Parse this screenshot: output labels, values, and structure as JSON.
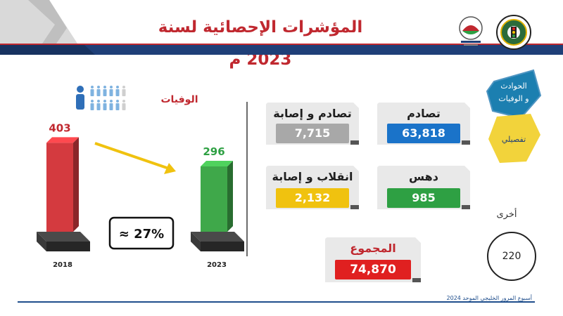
{
  "header": {
    "title": "المؤشرات الإحصائية لسنة 2023 م"
  },
  "chart_data": {
    "type": "bar",
    "title": "الوفيات",
    "categories": [
      "2018",
      "2023"
    ],
    "values": [
      403,
      296
    ],
    "colors": [
      "#d43a3f",
      "#3fa84a"
    ],
    "change_label": "≈ 27%",
    "ylim": [
      0,
      420
    ]
  },
  "cards": [
    {
      "label": "تصادم",
      "value": "63,818",
      "color": "#1a73c9",
      "id": "collision"
    },
    {
      "label": "تصادم و إصابة",
      "value": "7,715",
      "color": "#a8a8a8",
      "id": "collision-injury"
    },
    {
      "label": "دهس",
      "value": "985",
      "color": "#2ea043",
      "id": "run-over"
    },
    {
      "label": "انقلاب و إصابة",
      "value": "2,132",
      "color": "#f0c20f",
      "id": "rollover-injury"
    },
    {
      "label": "المجموع",
      "value": "74,870",
      "color": "#e02020",
      "id": "total"
    }
  ],
  "side": {
    "section_label_1": "الحوادث",
    "section_label_2": "و الوفيات",
    "detail_label": "تفصيلي"
  },
  "other": {
    "label": "أخرى",
    "value": "220"
  },
  "footer": {
    "text": "أسبوع المرور الخليجي الموحد 2024"
  },
  "colors": {
    "navy": "#1f3f78",
    "brand_red": "#c0282f",
    "teal": "#1c7fb0",
    "yellow": "#f2d33b"
  }
}
